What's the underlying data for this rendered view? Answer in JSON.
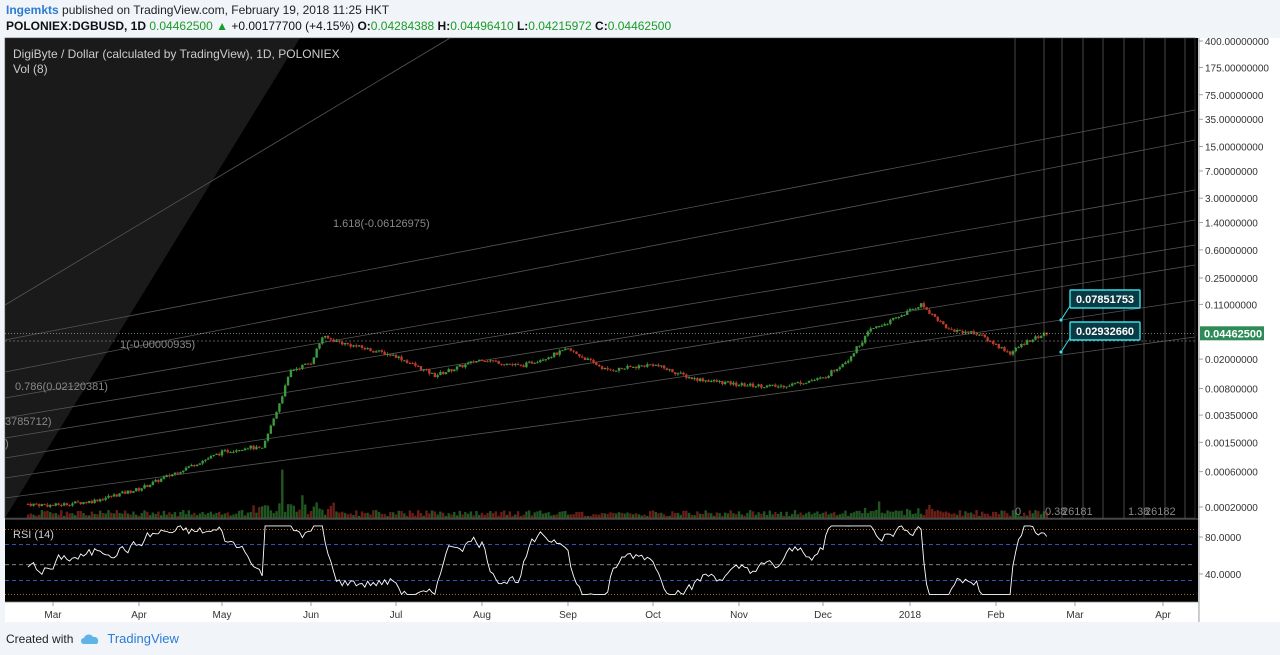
{
  "header": {
    "author": "Ingemkts",
    "published": "published on TradingView.com, February 19, 2018 11:25 HKT",
    "symbol": "POLONIEX:DGBUSD, 1D",
    "last": "0.04462500",
    "change_arrow": "▲",
    "change": "+0.00177700 (+4.15%)",
    "o_label": "O:",
    "open": "0.04284388",
    "h_label": "H:",
    "high": "0.04496410",
    "l_label": "L:",
    "low": "0.04215972",
    "c_label": "C:",
    "close": "0.04462500"
  },
  "footer": {
    "created": "Created with",
    "brand": "TradingView",
    "icon": "tradingview-cloud-icon"
  },
  "colors": {
    "background": "#000000",
    "up": "#3c9a3c",
    "down": "#c0392b",
    "accent": "#35e0e8",
    "rsi_line": "#ffffff",
    "rsi_band": "#3b5bdb",
    "rsi_bound": "#d4922c"
  },
  "chart_data": [
    {
      "type": "candlestick",
      "title": "DigiByte / Dollar (calculated by TradingView), 1D, POLONIEX",
      "subtitle": "Vol (8)",
      "y_scale": "log",
      "y_ticks": [
        "400.00000000",
        "175.00000000",
        "75.00000000",
        "35.00000000",
        "15.00000000",
        "7.00000000",
        "3.00000000",
        "1.40000000",
        "0.60000000",
        "0.25000000",
        "0.11000000",
        "0.04462500",
        "0.02000000",
        "0.00800000",
        "0.00350000",
        "0.00150000",
        "0.00060000",
        "0.00020000"
      ],
      "x_ticks": [
        "Mar",
        "Apr",
        "May",
        "Jun",
        "Jul",
        "Aug",
        "Sep",
        "Oct",
        "Nov",
        "Dec",
        "2018",
        "Feb",
        "Mar",
        "Apr"
      ],
      "current_price": "0.04462500",
      "approx_close": [
        {
          "x": "Feb 20 2017",
          "y": 0.00022
        },
        {
          "x": "Mar 1",
          "y": 0.00021
        },
        {
          "x": "Mar 15",
          "y": 0.00024
        },
        {
          "x": "Apr 1",
          "y": 0.00035
        },
        {
          "x": "Apr 15",
          "y": 0.0006
        },
        {
          "x": "May 1",
          "y": 0.0011
        },
        {
          "x": "May 10",
          "y": 0.0013
        },
        {
          "x": "May 15",
          "y": 0.0012
        },
        {
          "x": "May 20",
          "y": 0.004
        },
        {
          "x": "May 25",
          "y": 0.014
        },
        {
          "x": "Jun 1",
          "y": 0.018
        },
        {
          "x": "Jun 5",
          "y": 0.04
        },
        {
          "x": "Jun 12",
          "y": 0.033
        },
        {
          "x": "Jul 1",
          "y": 0.022
        },
        {
          "x": "Jul 15",
          "y": 0.012
        },
        {
          "x": "Aug 1",
          "y": 0.02
        },
        {
          "x": "Aug 15",
          "y": 0.016
        },
        {
          "x": "Sep 1",
          "y": 0.027
        },
        {
          "x": "Sep 15",
          "y": 0.014
        },
        {
          "x": "Oct 1",
          "y": 0.017
        },
        {
          "x": "Oct 15",
          "y": 0.011
        },
        {
          "x": "Nov 1",
          "y": 0.009
        },
        {
          "x": "Nov 15",
          "y": 0.0085
        },
        {
          "x": "Dec 1",
          "y": 0.011
        },
        {
          "x": "Dec 10",
          "y": 0.02
        },
        {
          "x": "Dec 18",
          "y": 0.05
        },
        {
          "x": "Dec 25",
          "y": 0.065
        },
        {
          "x": "Jan 5 2018",
          "y": 0.11
        },
        {
          "x": "Jan 15",
          "y": 0.05
        },
        {
          "x": "Jan 25",
          "y": 0.045
        },
        {
          "x": "Feb 6",
          "y": 0.024
        },
        {
          "x": "Feb 12",
          "y": 0.035
        },
        {
          "x": "Feb 19",
          "y": 0.044625
        }
      ],
      "fib_labels": [
        "1.618(-0.06126975)",
        "1(-0.00000935)",
        "0.786(0.02120381)",
        "3785712)",
        ")"
      ],
      "time_fib_labels": [
        "0",
        "0.38",
        "26181",
        "1.38",
        "26182"
      ],
      "callouts": [
        "0.07851753",
        "0.02932660"
      ]
    },
    {
      "type": "line",
      "title": "RSI (14)",
      "y_ticks": [
        "80.0000",
        "40.0000"
      ],
      "bands": [
        30,
        70
      ],
      "bounds": [
        20,
        80
      ]
    }
  ]
}
